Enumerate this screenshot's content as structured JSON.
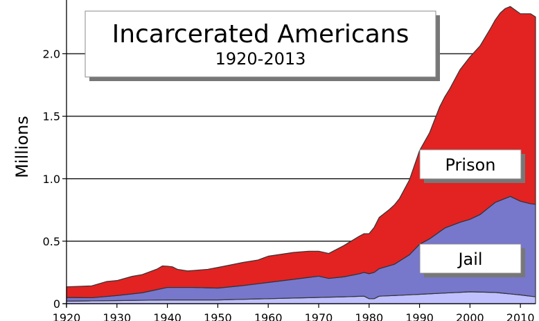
{
  "chart_data": {
    "type": "area",
    "title": "Incarcerated Americans",
    "subtitle": "1920-2013",
    "xlabel": "",
    "ylabel": "Millions",
    "xlim": [
      1920,
      2013
    ],
    "ylim": [
      0,
      2.4
    ],
    "yticks": [
      0,
      0.5,
      1.0,
      1.5,
      2.0
    ],
    "ytick_labels": [
      "0",
      "0.5",
      "1.0",
      "1.5",
      "2.0"
    ],
    "xticks": [
      1920,
      1930,
      1940,
      1950,
      1960,
      1970,
      1980,
      1990,
      2000,
      2010
    ],
    "grid": "horizontal",
    "stacked": true,
    "colors": {
      "juvenile": "#c0c0ff",
      "jail": "#7777cc",
      "prison": "#e32222",
      "outline": "#333333"
    },
    "series": [
      {
        "key": "juvenile",
        "x": [
          1920,
          1930,
          1940,
          1950,
          1960,
          1970,
          1975,
          1979,
          1980,
          1981,
          1982,
          1985,
          1990,
          1995,
          2000,
          2005,
          2010,
          2013
        ],
        "values": [
          0.02,
          0.025,
          0.03,
          0.03,
          0.04,
          0.05,
          0.055,
          0.06,
          0.04,
          0.04,
          0.06,
          0.065,
          0.075,
          0.085,
          0.095,
          0.09,
          0.07,
          0.055
        ]
      },
      {
        "key": "jail",
        "name": "Jail",
        "x": [
          1920,
          1925,
          1930,
          1935,
          1940,
          1945,
          1950,
          1955,
          1960,
          1965,
          1970,
          1972,
          1975,
          1978,
          1980,
          1982,
          1985,
          1988,
          1990,
          1992,
          1995,
          1998,
          2000,
          2002,
          2005,
          2008,
          2010,
          2012,
          2013
        ],
        "values": [
          0.03,
          0.025,
          0.04,
          0.06,
          0.1,
          0.1,
          0.095,
          0.11,
          0.13,
          0.15,
          0.17,
          0.15,
          0.16,
          0.18,
          0.2,
          0.22,
          0.25,
          0.32,
          0.4,
          0.44,
          0.52,
          0.56,
          0.58,
          0.62,
          0.72,
          0.78,
          0.75,
          0.74,
          0.74
        ]
      },
      {
        "key": "prison",
        "name": "Prison",
        "x": [
          1920,
          1925,
          1928,
          1930,
          1933,
          1935,
          1938,
          1939,
          1940,
          1941,
          1942,
          1944,
          1945,
          1948,
          1950,
          1955,
          1958,
          1960,
          1965,
          1968,
          1970,
          1972,
          1975,
          1978,
          1980,
          1981,
          1982,
          1984,
          1986,
          1988,
          1990,
          1992,
          1994,
          1996,
          1998,
          2000,
          2002,
          2004,
          2006,
          2007,
          2008,
          2010,
          2012,
          2013
        ],
        "values": [
          0.085,
          0.095,
          0.12,
          0.12,
          0.14,
          0.145,
          0.165,
          0.18,
          0.17,
          0.165,
          0.145,
          0.132,
          0.135,
          0.148,
          0.165,
          0.185,
          0.19,
          0.21,
          0.215,
          0.21,
          0.2,
          0.2,
          0.25,
          0.3,
          0.32,
          0.36,
          0.41,
          0.45,
          0.5,
          0.6,
          0.75,
          0.85,
          1.0,
          1.1,
          1.22,
          1.3,
          1.35,
          1.42,
          1.5,
          1.52,
          1.52,
          1.5,
          1.52,
          1.5
        ]
      }
    ],
    "annotations": [
      {
        "key": "prison",
        "text": "Prison"
      },
      {
        "key": "jail",
        "text": "Jail"
      }
    ]
  }
}
